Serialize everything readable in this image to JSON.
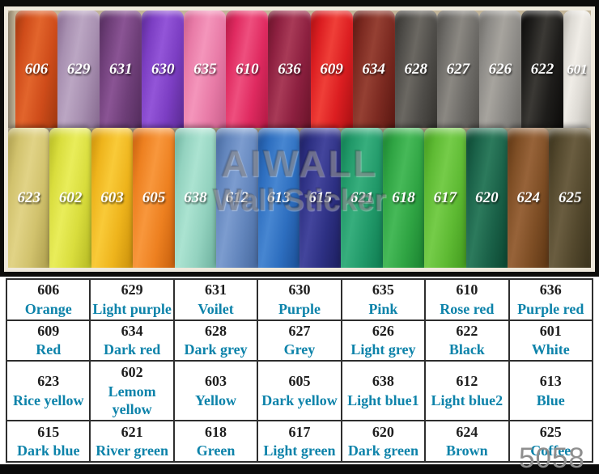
{
  "watermark": {
    "line1": "AIWALL",
    "line2": "Wall Sticker"
  },
  "footer": {
    "product_code": "5058"
  },
  "palette": {
    "table_code_color": "#1f1f1f",
    "table_name_color": "#0d83aa",
    "table_border_color": "#2e2e2e",
    "photo_frame_color": "#efe9dc"
  },
  "rolls_top": [
    {
      "code": "606",
      "dark": "#a0380f",
      "base": "#cf4c1a",
      "light": "#e2652c"
    },
    {
      "code": "629",
      "dark": "#86698f",
      "base": "#a78fb0",
      "light": "#bba6c3"
    },
    {
      "code": "631",
      "dark": "#532c5c",
      "base": "#6f3f79",
      "light": "#8a5494"
    },
    {
      "code": "630",
      "dark": "#5a2a92",
      "base": "#7c3ec3",
      "light": "#9355d8"
    },
    {
      "code": "635",
      "dark": "#c95e8b",
      "base": "#e87ba7",
      "light": "#f495bb"
    },
    {
      "code": "610",
      "dark": "#b21944",
      "base": "#df2a60",
      "light": "#ee4f7e"
    },
    {
      "code": "636",
      "dark": "#691329",
      "base": "#8d2040",
      "light": "#a83a57"
    },
    {
      "code": "609",
      "dark": "#a91013",
      "base": "#dc1e21",
      "light": "#ef3f38"
    },
    {
      "code": "634",
      "dark": "#591711",
      "base": "#7c2a21",
      "light": "#954033"
    },
    {
      "code": "628",
      "dark": "#34322e",
      "base": "#4f4d49",
      "light": "#6b6862"
    },
    {
      "code": "627",
      "dark": "#504e4a",
      "base": "#6e6c68",
      "light": "#8b8882"
    },
    {
      "code": "626",
      "dark": "#6d6b67",
      "base": "#8d8b87",
      "light": "#a7a49e"
    },
    {
      "code": "622",
      "dark": "#0b0a09",
      "base": "#1e1d1b",
      "light": "#3b3935"
    },
    {
      "code": "601",
      "dark": "#b5b2ab",
      "base": "#dcd9d3",
      "light": "#f0ede7"
    }
  ],
  "rolls_bottom": [
    {
      "code": "623",
      "dark": "#ab9c4b",
      "base": "#d1c26d",
      "light": "#e1d386"
    },
    {
      "code": "602",
      "dark": "#b4b822",
      "base": "#d9dd3d",
      "light": "#e9ed5a"
    },
    {
      "code": "603",
      "dark": "#c98f0a",
      "base": "#eeb41c",
      "light": "#f9ca38"
    },
    {
      "code": "605",
      "dark": "#c55e0c",
      "base": "#ed8020",
      "light": "#f8973c"
    },
    {
      "code": "638",
      "dark": "#6cb09d",
      "base": "#93d2bf",
      "light": "#abe3d1"
    },
    {
      "code": "612",
      "dark": "#45679c",
      "base": "#6285bc",
      "light": "#7c9ccf"
    },
    {
      "code": "613",
      "dark": "#1b4e95",
      "base": "#2d6ebf",
      "light": "#4786d1"
    },
    {
      "code": "615",
      "dark": "#1c1e5e",
      "base": "#2d3083",
      "light": "#43459c"
    },
    {
      "code": "621",
      "dark": "#0e7a4f",
      "base": "#219969",
      "light": "#37ae7d"
    },
    {
      "code": "618",
      "dark": "#1a8130",
      "base": "#2fa443",
      "light": "#46b958"
    },
    {
      "code": "617",
      "dark": "#41991d",
      "base": "#5eba33",
      "light": "#75cc49"
    },
    {
      "code": "620",
      "dark": "#0b4530",
      "base": "#1a6148",
      "light": "#2c7a5c"
    },
    {
      "code": "624",
      "dark": "#5c3513",
      "base": "#7e4e25",
      "light": "#976339"
    },
    {
      "code": "625",
      "dark": "#39311b",
      "base": "#53482d",
      "light": "#6a5d40"
    }
  ],
  "chart_data": {
    "type": "table",
    "columns": [
      "code",
      "color_name"
    ],
    "rows": [
      [
        {
          "code": "606",
          "name": "Orange"
        },
        {
          "code": "629",
          "name": "Light purple"
        },
        {
          "code": "631",
          "name": "Voilet"
        },
        {
          "code": "630",
          "name": "Purple"
        },
        {
          "code": "635",
          "name": "Pink"
        },
        {
          "code": "610",
          "name": "Rose red"
        },
        {
          "code": "636",
          "name": "Purple red"
        }
      ],
      [
        {
          "code": "609",
          "name": "Red"
        },
        {
          "code": "634",
          "name": "Dark red"
        },
        {
          "code": "628",
          "name": "Dark grey"
        },
        {
          "code": "627",
          "name": "Grey"
        },
        {
          "code": "626",
          "name": "Light grey"
        },
        {
          "code": "622",
          "name": "Black"
        },
        {
          "code": "601",
          "name": "White"
        }
      ],
      [
        {
          "code": "623",
          "name": "Rice yellow"
        },
        {
          "code": "602",
          "name": "Lemom yellow"
        },
        {
          "code": "603",
          "name": "Yellow"
        },
        {
          "code": "605",
          "name": "Dark yellow"
        },
        {
          "code": "638",
          "name": "Light blue1"
        },
        {
          "code": "612",
          "name": "Light blue2"
        },
        {
          "code": "613",
          "name": "Blue"
        }
      ],
      [
        {
          "code": "615",
          "name": "Dark blue"
        },
        {
          "code": "621",
          "name": "River green"
        },
        {
          "code": "618",
          "name": "Green"
        },
        {
          "code": "617",
          "name": "Light green"
        },
        {
          "code": "620",
          "name": "Dark green"
        },
        {
          "code": "624",
          "name": "Brown"
        },
        {
          "code": "625",
          "name": "Coffee"
        }
      ]
    ]
  }
}
